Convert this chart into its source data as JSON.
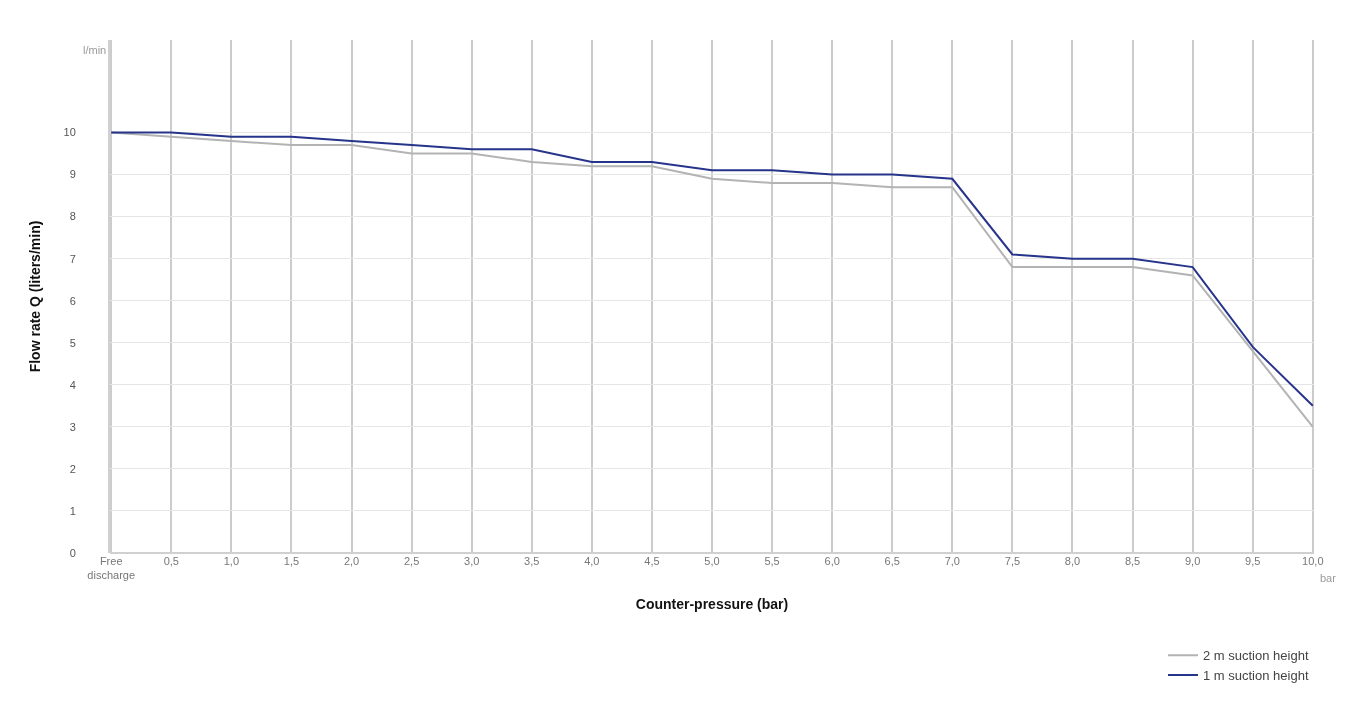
{
  "chart_data": {
    "type": "line",
    "xlabel": "Counter-pressure (bar)",
    "ylabel": "Flow rate Q (liters/min)",
    "annotations": [
      "l/min",
      "bar"
    ],
    "categories": [
      "Free\ndischarge",
      "0,5",
      "1,0",
      "1,5",
      "2,0",
      "2,5",
      "3,0",
      "3,5",
      "4,0",
      "4,5",
      "5,0",
      "5,5",
      "6,0",
      "6,5",
      "7,0",
      "7,5",
      "8,0",
      "8,5",
      "9,0",
      "9,5",
      "10,0"
    ],
    "series": [
      {
        "name": "2 m suction height",
        "color": "#b3b3b3",
        "values": [
          10,
          9.9,
          9.8,
          9.7,
          9.7,
          9.5,
          9.5,
          9.3,
          9.2,
          9.2,
          8.9,
          8.8,
          8.8,
          8.7,
          8.7,
          6.8,
          6.8,
          6.8,
          6.6,
          4.8,
          3.0
        ]
      },
      {
        "name": "1 m suction height",
        "color": "#27348b",
        "values": [
          10,
          10,
          9.9,
          9.9,
          9.8,
          9.7,
          9.6,
          9.6,
          9.3,
          9.3,
          9.1,
          9.1,
          9.0,
          9.0,
          8.9,
          7.1,
          7.0,
          7.0,
          6.8,
          4.9,
          3.5
        ]
      }
    ],
    "ylim": [
      0,
      12.2
    ],
    "yticks": [
      0,
      1,
      2,
      3,
      4,
      5,
      6,
      7,
      8,
      9,
      10
    ],
    "grid": true,
    "legend": "bottom right",
    "marker": "none",
    "line_style": "solid"
  }
}
